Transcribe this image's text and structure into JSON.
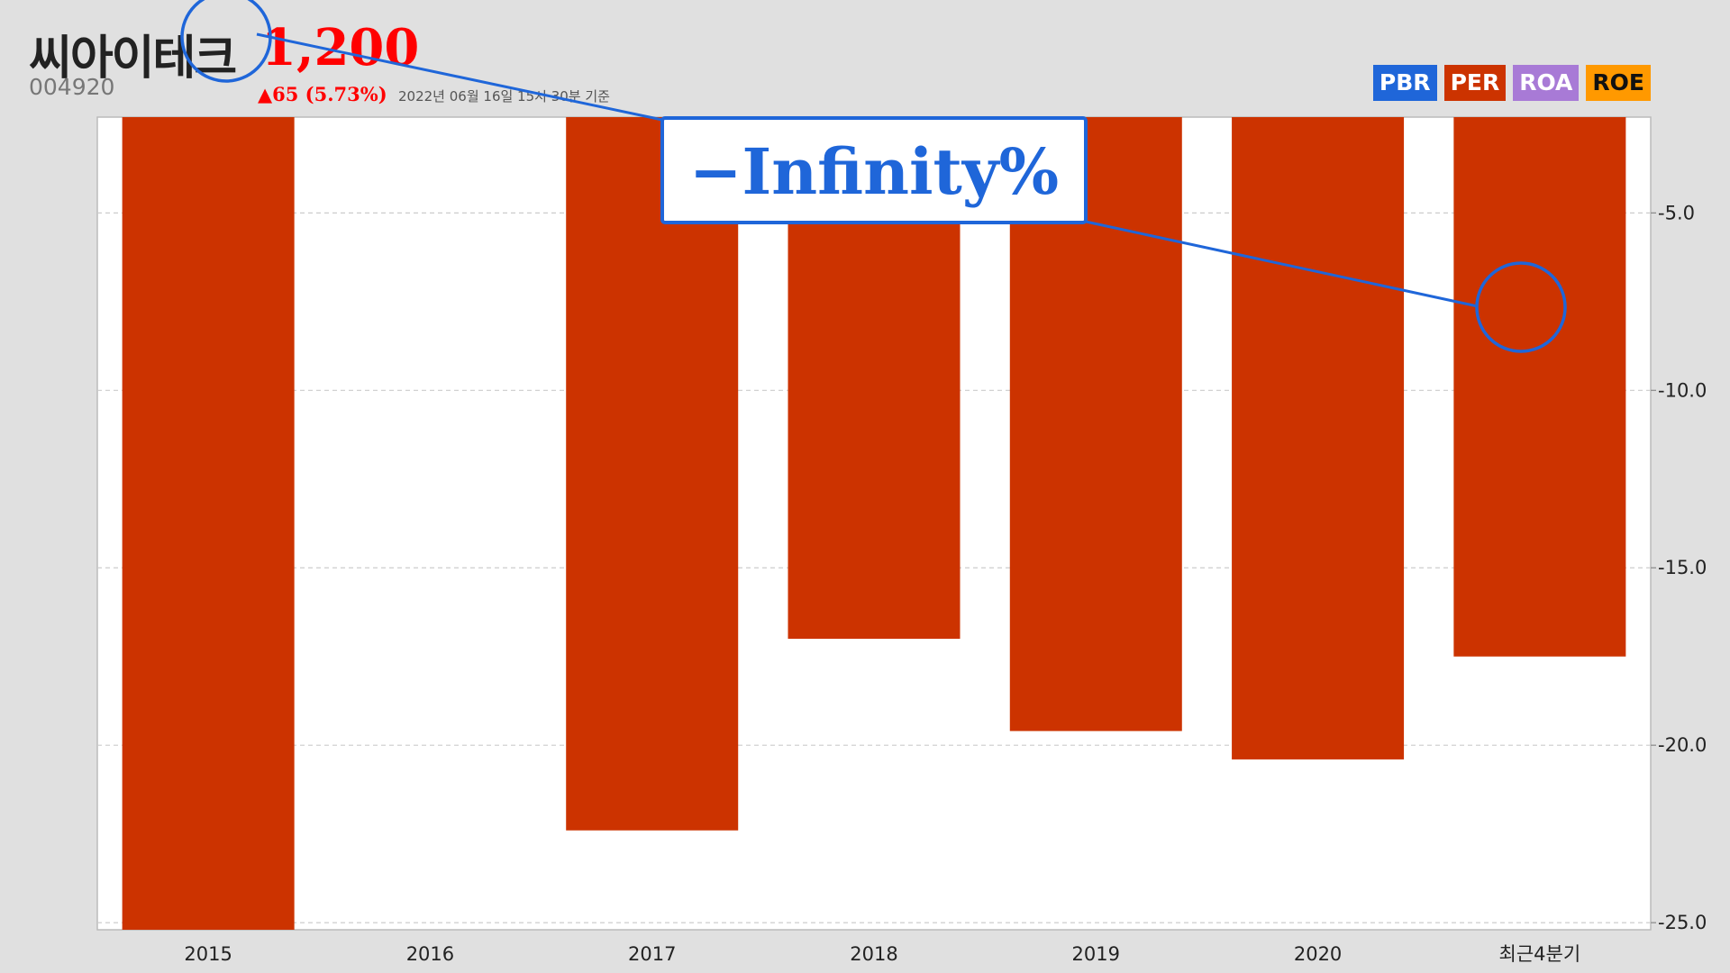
{
  "header": {
    "company": "씨아이테크",
    "price": "1,200",
    "code": "004920",
    "change": "▲65 (5.73%)",
    "asof": "2022년 06월 16일 15시 30분 기준"
  },
  "legend": [
    {
      "label": "PBR",
      "color": "#1f66d9"
    },
    {
      "label": "PER",
      "color": "#cc3300"
    },
    {
      "label": "ROA",
      "color": "#a87ad6"
    },
    {
      "label": "ROE",
      "color": "#ff9900"
    }
  ],
  "callout": {
    "text": "−Infinity%",
    "color": "#1f66d9"
  },
  "chart_data": {
    "type": "bar",
    "metric": "PER",
    "categories": [
      "2015",
      "2016",
      "2017",
      "2018",
      "2019",
      "2020",
      "최근4분기"
    ],
    "values": [
      -25.3,
      null,
      -22.4,
      -17.0,
      -19.6,
      -20.4,
      -17.5
    ],
    "bar_color": "#cc3300",
    "ylim": [
      -25.2,
      -2.3
    ],
    "yticks": [
      -5.0,
      -10.0,
      -15.0,
      -20.0,
      -25.0
    ],
    "ytick_labels": [
      "-5.0",
      "-10.0",
      "-15.0",
      "-20.0",
      "-25.0"
    ],
    "grid": true,
    "y_axis_side": "right",
    "legend_position": "top-right"
  }
}
